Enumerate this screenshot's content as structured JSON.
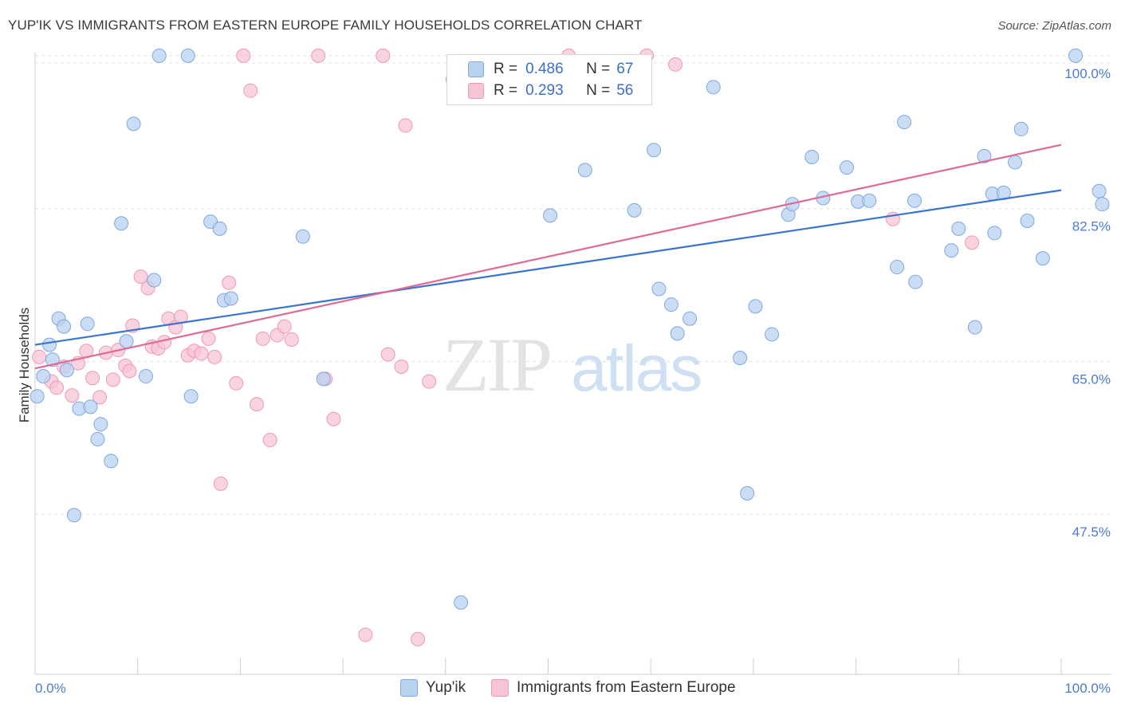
{
  "title": "YUP'IK VS IMMIGRANTS FROM EASTERN EUROPE FAMILY HOUSEHOLDS CORRELATION CHART",
  "source": "Source: ZipAtlas.com",
  "watermark": {
    "zip": "ZIP",
    "atlas": "atlas"
  },
  "legend_top": {
    "rows": [
      {
        "r_label": "R =",
        "r_value": "0.486",
        "n_label": "N =",
        "n_value": "67"
      },
      {
        "r_label": "R =",
        "r_value": "0.293",
        "n_label": "N =",
        "n_value": "56"
      }
    ]
  },
  "legend_bottom": [
    "Yup'ik",
    "Immigrants from Eastern Europe"
  ],
  "colors": {
    "blue_fill": "#b9d2f0",
    "blue_stroke": "#7fa8e0",
    "blue_line": "#3a74d0",
    "pink_fill": "#f7c4d4",
    "pink_stroke": "#ee9ab4",
    "pink_line": "#e06a95",
    "tick_text": "#4a7bd0",
    "grid": "#e3e3e3"
  },
  "chart_data": {
    "type": "scatter",
    "title": "YUP'IK VS IMMIGRANTS FROM EASTERN EUROPE FAMILY HOUSEHOLDS CORRELATION CHART",
    "xlabel": "",
    "ylabel": "Family Households",
    "xlim": [
      0,
      100
    ],
    "ylim": [
      31.0,
      100.9
    ],
    "x_tick_labels": [
      "0.0%",
      "100.0%"
    ],
    "y_ticks": [
      47.5,
      65.0,
      82.5,
      100.0
    ],
    "y_tick_labels": [
      "47.5%",
      "65.0%",
      "82.5%",
      "100.0%"
    ],
    "grid": true,
    "series": [
      {
        "name": "Yup'ik",
        "R": 0.486,
        "N": 67,
        "trend": {
          "x": [
            0,
            100
          ],
          "y": [
            66.9,
            84.6
          ]
        },
        "points": [
          [
            0.2,
            61.0
          ],
          [
            0.8,
            63.3
          ],
          [
            1.4,
            66.9
          ],
          [
            1.7,
            65.2
          ],
          [
            2.3,
            69.9
          ],
          [
            2.8,
            69.0
          ],
          [
            3.1,
            64.0
          ],
          [
            3.8,
            47.4
          ],
          [
            4.3,
            59.6
          ],
          [
            5.1,
            69.3
          ],
          [
            5.4,
            59.8
          ],
          [
            6.1,
            56.1
          ],
          [
            6.4,
            57.8
          ],
          [
            7.4,
            53.6
          ],
          [
            8.4,
            80.8
          ],
          [
            8.9,
            67.3
          ],
          [
            9.6,
            92.2
          ],
          [
            10.8,
            63.3
          ],
          [
            11.6,
            74.3
          ],
          [
            12.1,
            100.0
          ],
          [
            14.9,
            100.0
          ],
          [
            15.2,
            61.0
          ],
          [
            17.1,
            81.0
          ],
          [
            18.0,
            80.2
          ],
          [
            18.4,
            72.0
          ],
          [
            19.1,
            72.2
          ],
          [
            26.1,
            79.3
          ],
          [
            28.1,
            63.0
          ],
          [
            41.5,
            37.4
          ],
          [
            50.2,
            81.7
          ],
          [
            53.6,
            86.9
          ],
          [
            58.4,
            82.3
          ],
          [
            60.3,
            89.2
          ],
          [
            60.8,
            73.3
          ],
          [
            62.0,
            71.5
          ],
          [
            62.6,
            68.2
          ],
          [
            63.8,
            69.9
          ],
          [
            66.1,
            96.4
          ],
          [
            68.7,
            65.4
          ],
          [
            69.4,
            49.9
          ],
          [
            70.2,
            71.3
          ],
          [
            71.8,
            68.1
          ],
          [
            73.4,
            81.8
          ],
          [
            73.8,
            83.0
          ],
          [
            75.7,
            88.4
          ],
          [
            76.8,
            83.7
          ],
          [
            79.1,
            87.2
          ],
          [
            80.2,
            83.3
          ],
          [
            81.3,
            83.4
          ],
          [
            84.0,
            75.8
          ],
          [
            84.7,
            92.4
          ],
          [
            85.7,
            83.4
          ],
          [
            85.8,
            74.1
          ],
          [
            89.3,
            77.7
          ],
          [
            90.0,
            80.2
          ],
          [
            91.6,
            68.9
          ],
          [
            92.5,
            88.5
          ],
          [
            93.3,
            84.2
          ],
          [
            93.5,
            79.7
          ],
          [
            94.4,
            84.3
          ],
          [
            95.5,
            87.8
          ],
          [
            96.1,
            91.6
          ],
          [
            96.7,
            81.1
          ],
          [
            98.2,
            76.8
          ],
          [
            101.4,
            100.0
          ],
          [
            103.7,
            84.5
          ],
          [
            104.0,
            83.0
          ]
        ]
      },
      {
        "name": "Immigrants from Eastern Europe",
        "R": 0.293,
        "N": 56,
        "trend": {
          "x": [
            0,
            100
          ],
          "y": [
            64.2,
            89.8
          ]
        },
        "points": [
          [
            0.4,
            65.5
          ],
          [
            1.6,
            62.7
          ],
          [
            2.1,
            62.0
          ],
          [
            2.8,
            64.4
          ],
          [
            3.6,
            61.1
          ],
          [
            4.2,
            64.8
          ],
          [
            5.0,
            66.2
          ],
          [
            5.6,
            63.1
          ],
          [
            6.3,
            60.9
          ],
          [
            6.9,
            66.0
          ],
          [
            7.6,
            62.9
          ],
          [
            8.1,
            66.3
          ],
          [
            8.8,
            64.5
          ],
          [
            9.2,
            63.9
          ],
          [
            9.5,
            69.1
          ],
          [
            10.3,
            74.7
          ],
          [
            11.0,
            73.4
          ],
          [
            11.4,
            66.7
          ],
          [
            12.0,
            66.5
          ],
          [
            12.6,
            67.2
          ],
          [
            13.0,
            69.9
          ],
          [
            13.7,
            68.9
          ],
          [
            14.2,
            70.1
          ],
          [
            14.9,
            65.7
          ],
          [
            15.5,
            66.2
          ],
          [
            16.2,
            65.9
          ],
          [
            16.9,
            67.6
          ],
          [
            17.5,
            65.5
          ],
          [
            18.1,
            51.0
          ],
          [
            18.9,
            74.0
          ],
          [
            19.6,
            62.5
          ],
          [
            20.3,
            100.0
          ],
          [
            21.0,
            96.0
          ],
          [
            21.6,
            60.1
          ],
          [
            22.2,
            67.6
          ],
          [
            22.9,
            56.0
          ],
          [
            23.6,
            68.0
          ],
          [
            24.3,
            69.0
          ],
          [
            25.0,
            67.5
          ],
          [
            27.6,
            100.0
          ],
          [
            28.3,
            63.0
          ],
          [
            29.1,
            58.4
          ],
          [
            32.2,
            33.7
          ],
          [
            33.9,
            100.0
          ],
          [
            34.4,
            65.8
          ],
          [
            35.7,
            64.4
          ],
          [
            36.1,
            92.0
          ],
          [
            37.3,
            33.2
          ],
          [
            38.4,
            62.7
          ],
          [
            40.7,
            97.3
          ],
          [
            52.0,
            100.0
          ],
          [
            56.5,
            99.3
          ],
          [
            59.6,
            100.0
          ],
          [
            62.4,
            99.0
          ],
          [
            83.6,
            81.3
          ],
          [
            91.3,
            78.6
          ]
        ]
      }
    ]
  }
}
